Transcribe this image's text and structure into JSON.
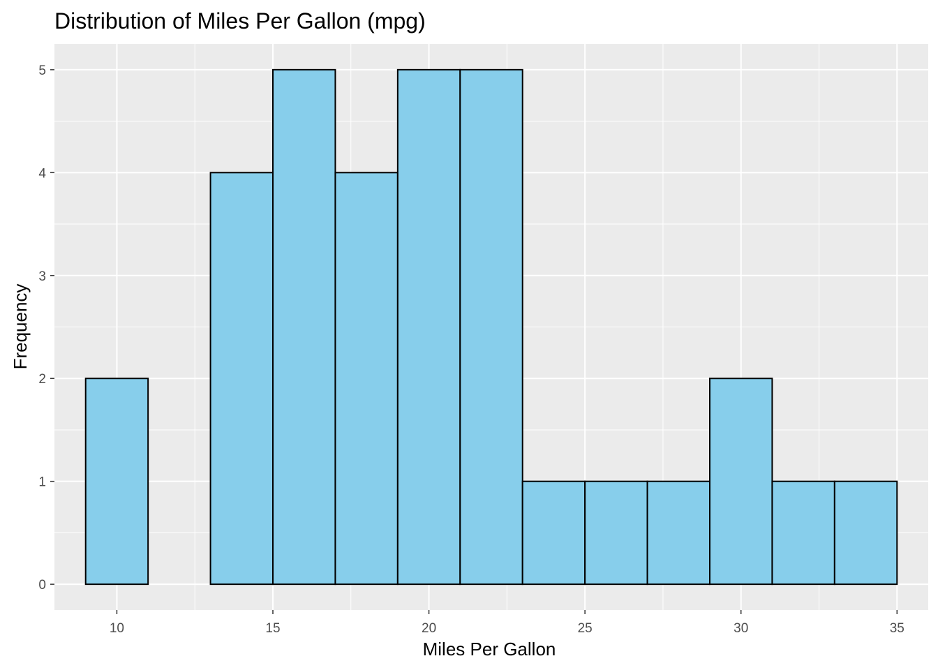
{
  "chart_data": {
    "type": "bar",
    "title": "Distribution of Miles Per Gallon (mpg)",
    "xlabel": "Miles Per Gallon",
    "ylabel": "Frequency",
    "bin_width": 2,
    "bins": [
      {
        "start": 9,
        "end": 11,
        "count": 2
      },
      {
        "start": 11,
        "end": 13,
        "count": 0
      },
      {
        "start": 13,
        "end": 15,
        "count": 4
      },
      {
        "start": 15,
        "end": 17,
        "count": 5
      },
      {
        "start": 17,
        "end": 19,
        "count": 4
      },
      {
        "start": 19,
        "end": 21,
        "count": 5
      },
      {
        "start": 21,
        "end": 23,
        "count": 5
      },
      {
        "start": 23,
        "end": 25,
        "count": 1
      },
      {
        "start": 25,
        "end": 27,
        "count": 1
      },
      {
        "start": 27,
        "end": 29,
        "count": 1
      },
      {
        "start": 29,
        "end": 31,
        "count": 2
      },
      {
        "start": 31,
        "end": 33,
        "count": 1
      },
      {
        "start": 33,
        "end": 35,
        "count": 1
      }
    ],
    "x_ticks": [
      10,
      15,
      20,
      25,
      30,
      35
    ],
    "y_ticks": [
      0,
      1,
      2,
      3,
      4,
      5
    ],
    "xlim": [
      8,
      36
    ],
    "ylim": [
      -0.25,
      5.25
    ],
    "grid": true,
    "colors": {
      "bar_fill": "#87CEEB",
      "bar_outline": "#000000",
      "panel_background": "#EBEBEB",
      "grid": "#FFFFFF"
    }
  }
}
